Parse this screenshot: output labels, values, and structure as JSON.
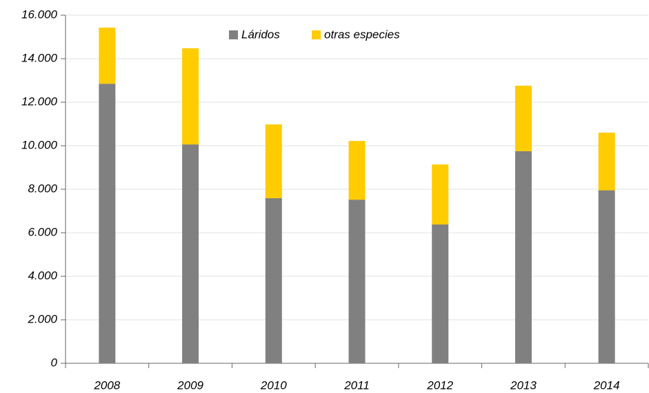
{
  "chart_data": {
    "type": "stacked_bar",
    "categories": [
      "2008",
      "2009",
      "2010",
      "2011",
      "2012",
      "2013",
      "2014"
    ],
    "series": [
      {
        "name": "Láridos",
        "color": "#808080",
        "values": [
          12850,
          10060,
          7590,
          7520,
          6380,
          9750,
          7950
        ]
      },
      {
        "name": "otras especies",
        "color": "#ffcc00",
        "values": [
          2580,
          4420,
          3390,
          2700,
          2760,
          3010,
          2650
        ]
      }
    ],
    "ylim": [
      0,
      16000
    ],
    "yticks": [
      0,
      {
        "value": 2000,
        "label": "2.000"
      },
      {
        "value": 4000,
        "label": "4.000"
      },
      {
        "value": 6000,
        "label": "6.000"
      },
      {
        "value": 8000,
        "label": "8.000"
      },
      {
        "value": 10000,
        "label": "10.000"
      },
      {
        "value": 12000,
        "label": "12.000"
      },
      {
        "value": 14000,
        "label": "14.000"
      },
      {
        "value": 16000,
        "label": "16.000"
      }
    ],
    "grid": true
  }
}
